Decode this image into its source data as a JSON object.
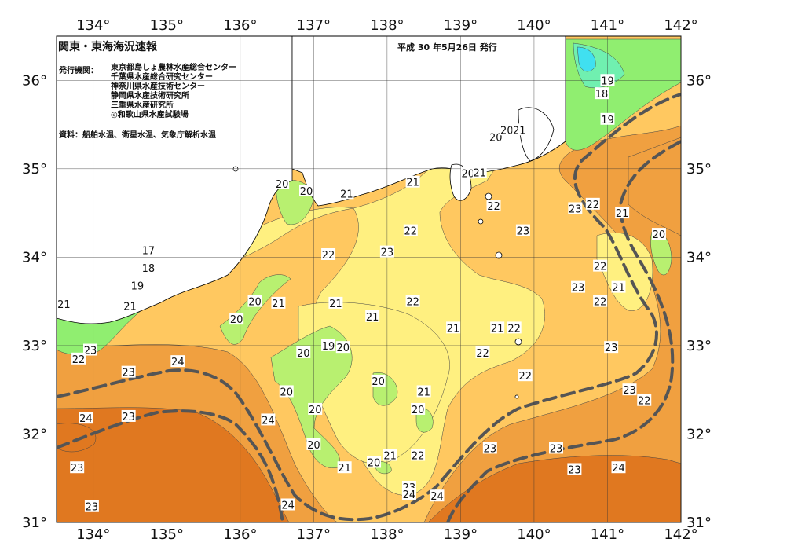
{
  "title": "関東・東海海況速報",
  "issue_date": "平成 30 年5月26日 発行",
  "issuers_label": "発行機関：",
  "issuers": [
    "東京都島しょ農林水産総合センター",
    "千葉県水産総合研究センター",
    "神奈川県水産技術センター",
    "静岡県水産技術研究所",
    "三重県水産研究所",
    "◎和歌山県水産試験場"
  ],
  "sources": "資料：船舶水温、衛星水温、気象庁解析水温",
  "axes": {
    "longitude_range": [
      133.5,
      142
    ],
    "latitude_range": [
      31,
      36.5
    ],
    "longitude_ticks": [
      "134°",
      "135°",
      "136°",
      "137°",
      "138°",
      "139°",
      "140°",
      "141°",
      "142°"
    ],
    "latitude_ticks": [
      "36°",
      "35°",
      "34°",
      "33°",
      "32°",
      "31°"
    ]
  },
  "temperature_colors": {
    "17": "#40e0f0",
    "18": "#70f0b0",
    "19": "#90ee70",
    "20": "#b8f070",
    "21": "#fff080",
    "22": "#ffc860",
    "23": "#f0a040",
    "24": "#e07820",
    "land": "#ffffff",
    "kuroshio_axis": "#555555"
  },
  "contour_labels": [
    {
      "text": "17",
      "lon": 134.75,
      "lat": 34.08
    },
    {
      "text": "18",
      "lon": 134.75,
      "lat": 33.88
    },
    {
      "text": "19",
      "lon": 134.6,
      "lat": 33.68
    },
    {
      "text": "21",
      "lon": 133.6,
      "lat": 33.47
    },
    {
      "text": "21",
      "lon": 134.5,
      "lat": 33.45
    },
    {
      "text": "23",
      "lon": 133.96,
      "lat": 32.95
    },
    {
      "text": "22",
      "lon": 133.8,
      "lat": 32.85
    },
    {
      "text": "24",
      "lon": 135.15,
      "lat": 32.82
    },
    {
      "text": "23",
      "lon": 134.48,
      "lat": 32.7
    },
    {
      "text": "24",
      "lon": 133.9,
      "lat": 32.18
    },
    {
      "text": "23",
      "lon": 134.48,
      "lat": 32.2
    },
    {
      "text": "23",
      "lon": 133.78,
      "lat": 31.62
    },
    {
      "text": "23",
      "lon": 133.98,
      "lat": 31.18
    },
    {
      "text": "24",
      "lon": 136.38,
      "lat": 32.16
    },
    {
      "text": "24",
      "lon": 136.65,
      "lat": 31.2
    },
    {
      "text": "20",
      "lon": 136.2,
      "lat": 33.5
    },
    {
      "text": "21",
      "lon": 136.52,
      "lat": 33.48
    },
    {
      "text": "20",
      "lon": 135.95,
      "lat": 33.3
    },
    {
      "text": "20",
      "lon": 136.57,
      "lat": 34.83
    },
    {
      "text": "20",
      "lon": 136.9,
      "lat": 34.75
    },
    {
      "text": "21",
      "lon": 137.45,
      "lat": 34.72
    },
    {
      "text": "22",
      "lon": 137.2,
      "lat": 34.03
    },
    {
      "text": "23",
      "lon": 138.0,
      "lat": 34.06
    },
    {
      "text": "22",
      "lon": 138.32,
      "lat": 34.3
    },
    {
      "text": "21",
      "lon": 138.35,
      "lat": 34.85
    },
    {
      "text": "21",
      "lon": 137.3,
      "lat": 33.48
    },
    {
      "text": "21",
      "lon": 137.8,
      "lat": 33.33
    },
    {
      "text": "22",
      "lon": 138.35,
      "lat": 33.5
    },
    {
      "text": "19",
      "lon": 137.2,
      "lat": 33.0
    },
    {
      "text": "20",
      "lon": 137.4,
      "lat": 32.98
    },
    {
      "text": "20",
      "lon": 136.86,
      "lat": 32.92
    },
    {
      "text": "20",
      "lon": 137.88,
      "lat": 32.6
    },
    {
      "text": "20",
      "lon": 136.63,
      "lat": 32.48
    },
    {
      "text": "20",
      "lon": 137.02,
      "lat": 32.28
    },
    {
      "text": "20",
      "lon": 137.0,
      "lat": 31.88
    },
    {
      "text": "21",
      "lon": 137.42,
      "lat": 31.62
    },
    {
      "text": "20",
      "lon": 137.82,
      "lat": 31.68
    },
    {
      "text": "21",
      "lon": 138.04,
      "lat": 31.76
    },
    {
      "text": "22",
      "lon": 138.42,
      "lat": 31.76
    },
    {
      "text": "21",
      "lon": 138.5,
      "lat": 32.48
    },
    {
      "text": "20",
      "lon": 138.42,
      "lat": 32.28
    },
    {
      "text": "23",
      "lon": 138.3,
      "lat": 31.4
    },
    {
      "text": "24",
      "lon": 138.3,
      "lat": 31.32
    },
    {
      "text": "24",
      "lon": 138.68,
      "lat": 31.3
    },
    {
      "text": "21",
      "lon": 138.9,
      "lat": 33.2
    },
    {
      "text": "21",
      "lon": 139.5,
      "lat": 33.2
    },
    {
      "text": "22",
      "lon": 139.73,
      "lat": 33.2
    },
    {
      "text": "22",
      "lon": 139.3,
      "lat": 32.92
    },
    {
      "text": "22",
      "lon": 139.88,
      "lat": 32.66
    },
    {
      "text": "23",
      "lon": 139.4,
      "lat": 31.84
    },
    {
      "text": "23",
      "lon": 140.3,
      "lat": 31.84
    },
    {
      "text": "23",
      "lon": 140.55,
      "lat": 31.6
    },
    {
      "text": "24",
      "lon": 141.15,
      "lat": 31.62
    },
    {
      "text": "20",
      "lon": 139.1,
      "lat": 34.95
    },
    {
      "text": "21",
      "lon": 139.26,
      "lat": 34.96
    },
    {
      "text": "22",
      "lon": 139.45,
      "lat": 34.58
    },
    {
      "text": "20",
      "lon": 139.48,
      "lat": 35.36
    },
    {
      "text": "20",
      "lon": 139.63,
      "lat": 35.44
    },
    {
      "text": "21",
      "lon": 139.8,
      "lat": 35.44
    },
    {
      "text": "23",
      "lon": 139.85,
      "lat": 34.3
    },
    {
      "text": "23",
      "lon": 140.56,
      "lat": 34.55
    },
    {
      "text": "22",
      "lon": 140.8,
      "lat": 34.6
    },
    {
      "text": "21",
      "lon": 141.2,
      "lat": 34.5
    },
    {
      "text": "20",
      "lon": 141.7,
      "lat": 34.26
    },
    {
      "text": "22",
      "lon": 140.9,
      "lat": 33.9
    },
    {
      "text": "23",
      "lon": 140.6,
      "lat": 33.66
    },
    {
      "text": "22",
      "lon": 140.9,
      "lat": 33.5
    },
    {
      "text": "21",
      "lon": 141.15,
      "lat": 33.66
    },
    {
      "text": "23",
      "lon": 141.05,
      "lat": 32.98
    },
    {
      "text": "23",
      "lon": 141.3,
      "lat": 32.5
    },
    {
      "text": "22",
      "lon": 141.5,
      "lat": 32.38
    },
    {
      "text": "19",
      "lon": 141.0,
      "lat": 36.0
    },
    {
      "text": "18",
      "lon": 140.92,
      "lat": 35.85
    },
    {
      "text": "19",
      "lon": 141.0,
      "lat": 35.56
    }
  ]
}
